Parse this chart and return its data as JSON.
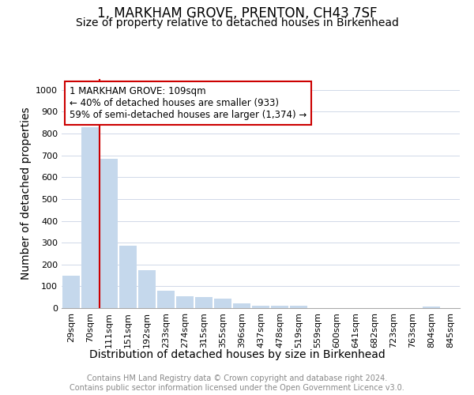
{
  "title": "1, MARKHAM GROVE, PRENTON, CH43 7SF",
  "subtitle": "Size of property relative to detached houses in Birkenhead",
  "xlabel": "Distribution of detached houses by size in Birkenhead",
  "ylabel": "Number of detached properties",
  "categories": [
    "29sqm",
    "70sqm",
    "111sqm",
    "151sqm",
    "192sqm",
    "233sqm",
    "274sqm",
    "315sqm",
    "355sqm",
    "396sqm",
    "437sqm",
    "478sqm",
    "519sqm",
    "559sqm",
    "600sqm",
    "641sqm",
    "682sqm",
    "723sqm",
    "763sqm",
    "804sqm",
    "845sqm"
  ],
  "values": [
    150,
    830,
    685,
    285,
    175,
    80,
    55,
    50,
    42,
    20,
    12,
    10,
    10,
    0,
    0,
    0,
    0,
    0,
    0,
    8,
    0
  ],
  "bar_color_left": "#c5d8ec",
  "bar_color_right": "#c5d8ec",
  "red_line_index": 2,
  "highlight_color": "#cc0000",
  "annotation_box_text": "1 MARKHAM GROVE: 109sqm\n← 40% of detached houses are smaller (933)\n59% of semi-detached houses are larger (1,374) →",
  "ylim": [
    0,
    1050
  ],
  "yticks": [
    0,
    100,
    200,
    300,
    400,
    500,
    600,
    700,
    800,
    900,
    1000
  ],
  "footer_line1": "Contains HM Land Registry data © Crown copyright and database right 2024.",
  "footer_line2": "Contains public sector information licensed under the Open Government Licence v3.0.",
  "title_fontsize": 12,
  "subtitle_fontsize": 10,
  "axis_label_fontsize": 10,
  "tick_fontsize": 8,
  "annotation_fontsize": 8.5,
  "footer_fontsize": 7
}
